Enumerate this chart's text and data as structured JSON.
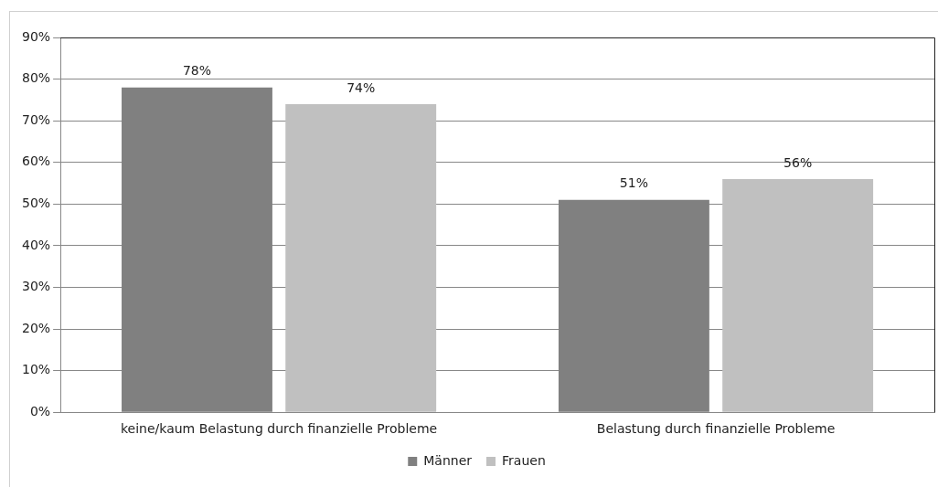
{
  "chart_data": {
    "type": "bar",
    "categories": [
      "keine/kaum Belastung durch finanzielle Probleme",
      "Belastung durch finanzielle Probleme"
    ],
    "series": [
      {
        "name": "Männer",
        "color": "#808080",
        "values": [
          78,
          51
        ],
        "value_labels": [
          "78%",
          "51%"
        ]
      },
      {
        "name": "Frauen",
        "color": "#c0c0c0",
        "values": [
          74,
          56
        ],
        "value_labels": [
          "74%",
          "56%"
        ]
      }
    ],
    "ylim": [
      0,
      90
    ],
    "yticks": [
      {
        "value": 0,
        "label": "0%"
      },
      {
        "value": 10,
        "label": "10%"
      },
      {
        "value": 20,
        "label": "20%"
      },
      {
        "value": 30,
        "label": "30%"
      },
      {
        "value": 40,
        "label": "40%"
      },
      {
        "value": 50,
        "label": "50%"
      },
      {
        "value": 60,
        "label": "60%"
      },
      {
        "value": 70,
        "label": "70%"
      },
      {
        "value": 80,
        "label": "80%"
      },
      {
        "value": 90,
        "label": "90%"
      }
    ],
    "grid": "y",
    "legend": "bottom"
  }
}
